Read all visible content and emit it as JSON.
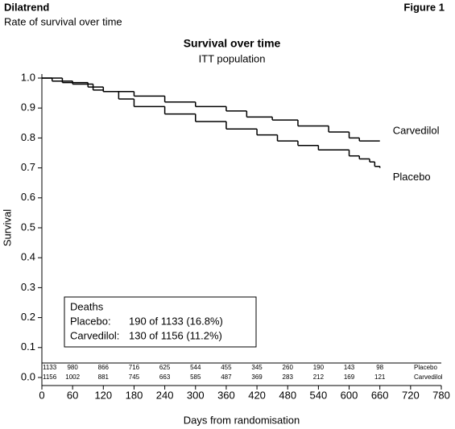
{
  "header": {
    "brand": "Dilatrend",
    "subtitle": "Rate of survival over time",
    "figure": "Figure 1"
  },
  "chart_data": {
    "type": "step",
    "title": "Survival over time",
    "subtitle": "ITT population",
    "x_label": "Days from randomisation",
    "y_label": "Survival",
    "xlim": [
      0,
      780
    ],
    "xticks": [
      0,
      60,
      120,
      180,
      240,
      300,
      360,
      420,
      480,
      540,
      600,
      660,
      720,
      780
    ],
    "ylim": [
      0,
      1
    ],
    "yticks": [
      {
        "value": 0,
        "label": "0.0"
      },
      0.1,
      0.2,
      0.3,
      0.4,
      0.5,
      0.6,
      0.7,
      0.8,
      0.9,
      {
        "value": 1,
        "label": "1.0"
      }
    ],
    "series": [
      {
        "name": "Carvedilol",
        "color": "#000000",
        "x": [
          0,
          20,
          60,
          100,
          120,
          180,
          240,
          300,
          360,
          400,
          450,
          500,
          560,
          600,
          620,
          660
        ],
        "values": [
          1.0,
          0.99,
          0.98,
          0.96,
          0.955,
          0.94,
          0.92,
          0.905,
          0.89,
          0.87,
          0.86,
          0.84,
          0.82,
          0.8,
          0.79,
          0.79
        ]
      },
      {
        "name": "Placebo",
        "color": "#000000",
        "x": [
          0,
          40,
          90,
          120,
          150,
          180,
          240,
          300,
          360,
          420,
          460,
          500,
          540,
          600,
          620,
          640,
          650,
          660
        ],
        "values": [
          1.0,
          0.985,
          0.97,
          0.955,
          0.93,
          0.905,
          0.88,
          0.855,
          0.83,
          0.81,
          0.79,
          0.775,
          0.76,
          0.74,
          0.73,
          0.72,
          0.705,
          0.7
        ]
      }
    ],
    "at_risk": [
      {
        "name": "Placebo",
        "values": [
          1133,
          980,
          866,
          716,
          625,
          544,
          455,
          345,
          260,
          190,
          143,
          98
        ]
      },
      {
        "name": "Carvedilol",
        "values": [
          1156,
          1002,
          881,
          745,
          663,
          585,
          487,
          369,
          283,
          212,
          169,
          121
        ]
      }
    ],
    "deaths_box": {
      "title": "Deaths",
      "rows": [
        [
          "Placebo:",
          "190 of 1133 (16.8%)"
        ],
        [
          "Carvedilol:",
          "130 of 1156 (11.2%)"
        ]
      ]
    }
  }
}
